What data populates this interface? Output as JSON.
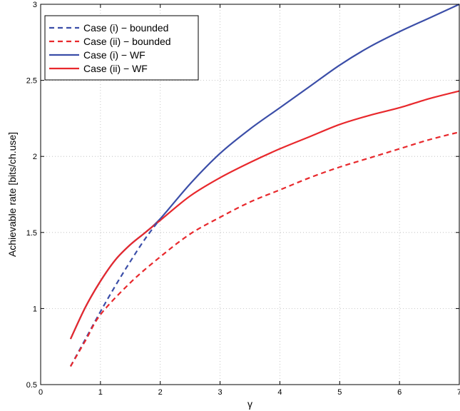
{
  "chart_data": {
    "type": "line",
    "title": "",
    "xlabel": "γ",
    "ylabel": "Achievable rate [bits/ch.use]",
    "xlim": [
      0,
      7
    ],
    "ylim": [
      0.5,
      3
    ],
    "xticks": [
      0,
      1,
      2,
      3,
      4,
      5,
      6,
      7
    ],
    "yticks": [
      0.5,
      1,
      1.5,
      2,
      2.5,
      3
    ],
    "xtick_labels": [
      "0",
      "1",
      "2",
      "3",
      "4",
      "5",
      "6",
      "7"
    ],
    "ytick_labels": [
      "0.5",
      "1",
      "1.5",
      "2",
      "2.5",
      "3"
    ],
    "grid": true,
    "legend_position": "top-left",
    "series": [
      {
        "name": "Case (i) − bounded",
        "color": "#3b4ea8",
        "style": "dashed",
        "x": [
          0.5,
          0.75,
          1.0,
          1.25,
          1.5,
          1.75,
          2.0
        ],
        "y": [
          0.62,
          0.8,
          0.98,
          1.15,
          1.31,
          1.46,
          1.59
        ]
      },
      {
        "name": "Case (ii) − bounded",
        "color": "#e8282c",
        "style": "dashed",
        "x": [
          0.5,
          0.75,
          1.0,
          1.5,
          2.0,
          2.5,
          3.0,
          3.5,
          4.0,
          4.5,
          5.0,
          5.5,
          6.0,
          6.5,
          7.0
        ],
        "y": [
          0.62,
          0.79,
          0.96,
          1.17,
          1.34,
          1.49,
          1.6,
          1.7,
          1.78,
          1.86,
          1.93,
          1.99,
          2.05,
          2.11,
          2.16
        ]
      },
      {
        "name": "Case (i) − WF",
        "color": "#3b4ea8",
        "style": "solid",
        "x": [
          0.5,
          0.75,
          1.0,
          1.25,
          1.5,
          1.75,
          2.0,
          2.5,
          3.0,
          3.5,
          4.0,
          4.5,
          5.0,
          5.5,
          6.0,
          6.5,
          7.0
        ],
        "y": [
          0.8,
          1.01,
          1.18,
          1.32,
          1.42,
          1.5,
          1.59,
          1.82,
          2.02,
          2.18,
          2.32,
          2.46,
          2.6,
          2.72,
          2.82,
          2.91,
          3.0
        ]
      },
      {
        "name": "Case (ii) − WF",
        "color": "#e8282c",
        "style": "solid",
        "x": [
          0.5,
          0.75,
          1.0,
          1.25,
          1.5,
          1.75,
          2.0,
          2.5,
          3.0,
          3.5,
          4.0,
          4.5,
          5.0,
          5.5,
          6.0,
          6.5,
          7.0
        ],
        "y": [
          0.8,
          1.01,
          1.18,
          1.32,
          1.42,
          1.5,
          1.58,
          1.74,
          1.86,
          1.96,
          2.05,
          2.13,
          2.21,
          2.27,
          2.32,
          2.38,
          2.43
        ]
      }
    ]
  }
}
